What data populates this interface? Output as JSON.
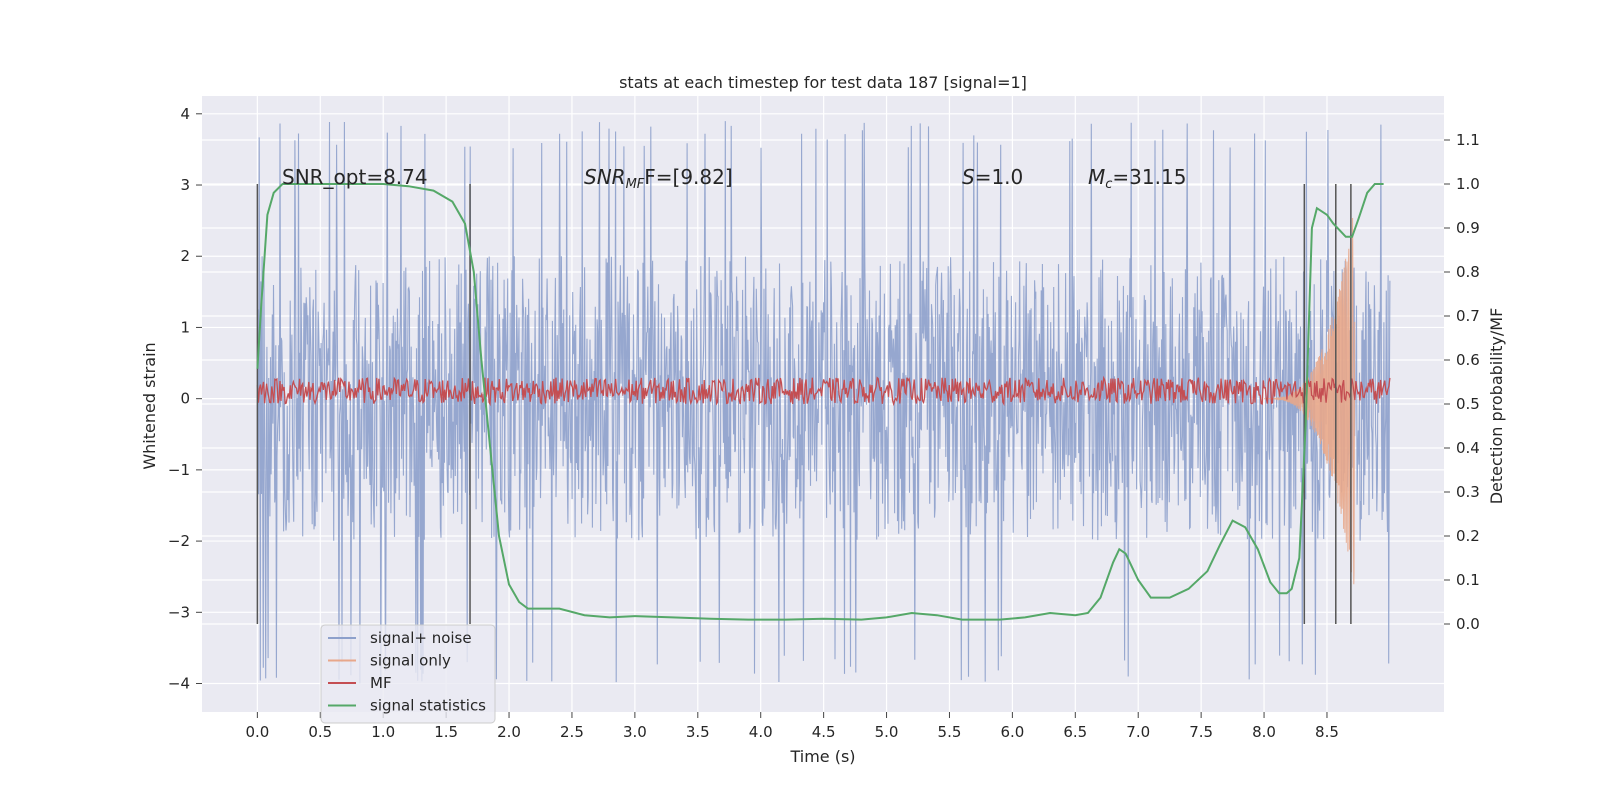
{
  "chart_data": {
    "type": "line",
    "title": "stats at each timestep for test data 187 [signal=1]",
    "xlabel": "Time (s)",
    "ylabel": "Whitened strain",
    "ylabel_right": "Detection probability/MF",
    "xlim": [
      -0.44,
      9.43
    ],
    "ylim": [
      -4.4,
      4.25
    ],
    "ylim_right": [
      -0.2,
      1.2
    ],
    "x_ticks": [
      0.0,
      0.5,
      1.0,
      1.5,
      2.0,
      2.5,
      3.0,
      3.5,
      4.0,
      4.5,
      5.0,
      5.5,
      6.0,
      6.5,
      7.0,
      7.5,
      8.0,
      8.5
    ],
    "x_tick_labels": [
      "0.0",
      "0.5",
      "1.0",
      "1.5",
      "2.0",
      "2.5",
      "3.0",
      "3.5",
      "4.0",
      "4.5",
      "5.0",
      "5.5",
      "6.0",
      "6.5",
      "7.0",
      "7.5",
      "8.0",
      "8.5"
    ],
    "y_ticks": [
      -4,
      -3,
      -2,
      -1,
      0,
      1,
      2,
      3,
      4
    ],
    "y_tick_labels": [
      "−4",
      "−3",
      "−2",
      "−1",
      "0",
      "1",
      "2",
      "3",
      "4"
    ],
    "y_ticks_right": [
      0.0,
      0.1,
      0.2,
      0.3,
      0.4,
      0.5,
      0.6,
      0.7,
      0.8,
      0.9,
      1.0,
      1.1
    ],
    "y_tick_labels_right": [
      "0.0",
      "0.1",
      "0.2",
      "0.3",
      "0.4",
      "0.5",
      "0.6",
      "0.7",
      "0.8",
      "0.9",
      "1.0",
      "1.1"
    ],
    "grid": true,
    "legend_position": "lower-left",
    "annotations": {
      "snr_opt": "SNR_opt=8.74",
      "snr_mf_main": "SNR",
      "snr_mf_sub": "MF",
      "snr_mf_value": "F=[9.82]",
      "s_main": "S",
      "s_value": "=1.0",
      "mc_main": "M",
      "mc_sub": "c",
      "mc_value": "=31.15"
    },
    "detection_lines_x": [
      0.0,
      1.69,
      8.32,
      8.57,
      8.69
    ],
    "detection_lines_range": [
      0.0,
      1.0
    ],
    "series": [
      {
        "name": "signal+ noise",
        "color": "#8da0cb",
        "style": "noise",
        "t_range": [
          0.0,
          9.0
        ],
        "core_amplitude": 1.3,
        "extreme_range": [
          -4.0,
          3.9
        ]
      },
      {
        "name": "signal only",
        "color": "#e8a78a",
        "style": "chirp",
        "t_range": [
          8.0,
          8.72
        ],
        "peak_amplitude": 2.0,
        "peak_time": 8.65
      },
      {
        "name": "MF",
        "color": "#c44e52",
        "style": "mf_noise",
        "t_range": [
          0.0,
          9.0
        ],
        "range_right_axis": [
          0.5,
          0.56
        ]
      },
      {
        "name": "signal statistics",
        "color": "#55a868",
        "axis": "right",
        "x": [
          0.0,
          0.03,
          0.08,
          0.13,
          0.2,
          0.35,
          0.6,
          1.0,
          1.2,
          1.4,
          1.55,
          1.65,
          1.72,
          1.78,
          1.85,
          1.92,
          2.0,
          2.08,
          2.15,
          2.25,
          2.4,
          2.6,
          2.8,
          3.0,
          3.3,
          3.6,
          3.9,
          4.2,
          4.5,
          4.8,
          5.0,
          5.2,
          5.4,
          5.6,
          5.9,
          6.1,
          6.3,
          6.5,
          6.6,
          6.7,
          6.8,
          6.85,
          6.9,
          6.95,
          7.0,
          7.1,
          7.25,
          7.4,
          7.55,
          7.65,
          7.75,
          7.85,
          7.95,
          8.05,
          8.12,
          8.18,
          8.22,
          8.28,
          8.33,
          8.38,
          8.42,
          8.5,
          8.55,
          8.6,
          8.65,
          8.7,
          8.75,
          8.82,
          8.88,
          8.95
        ],
        "y": [
          0.58,
          0.72,
          0.93,
          0.98,
          1.0,
          1.0,
          1.0,
          1.0,
          0.995,
          0.985,
          0.96,
          0.91,
          0.8,
          0.6,
          0.4,
          0.2,
          0.09,
          0.05,
          0.035,
          0.035,
          0.035,
          0.02,
          0.015,
          0.018,
          0.015,
          0.012,
          0.01,
          0.01,
          0.012,
          0.01,
          0.015,
          0.025,
          0.02,
          0.01,
          0.01,
          0.015,
          0.025,
          0.02,
          0.025,
          0.06,
          0.14,
          0.17,
          0.16,
          0.13,
          0.1,
          0.06,
          0.06,
          0.08,
          0.12,
          0.18,
          0.235,
          0.22,
          0.17,
          0.095,
          0.07,
          0.07,
          0.08,
          0.15,
          0.45,
          0.9,
          0.945,
          0.93,
          0.91,
          0.895,
          0.88,
          0.88,
          0.92,
          0.98,
          1.0,
          1.0
        ]
      }
    ]
  }
}
